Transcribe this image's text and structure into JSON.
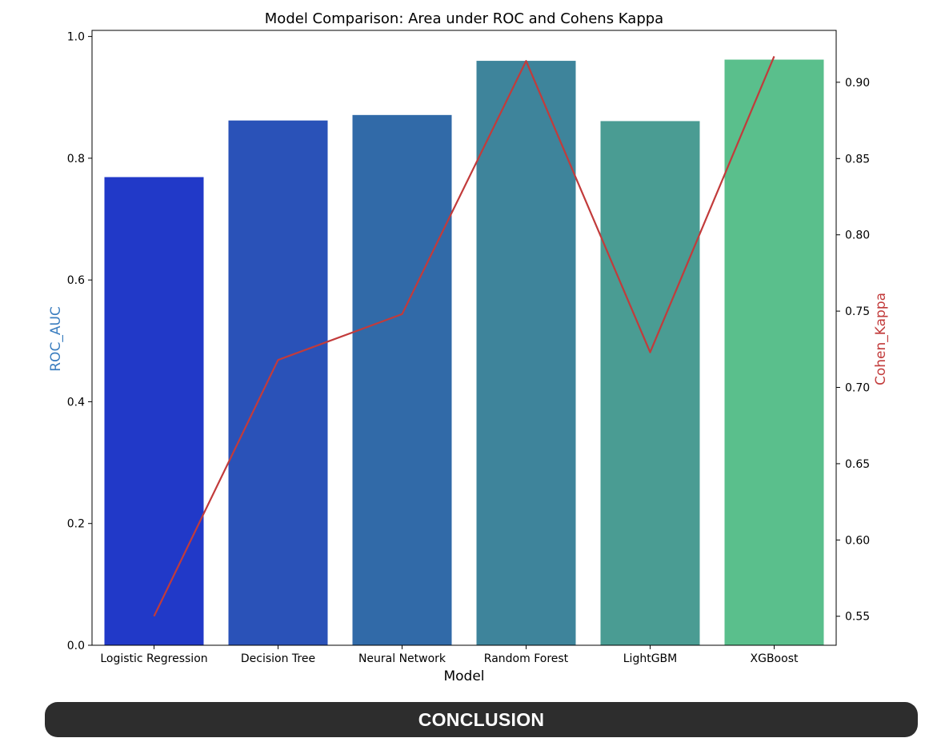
{
  "chart_data": {
    "type": "bar",
    "title": "Model Comparison: Area under ROC and Cohens Kappa",
    "xlabel": "Model",
    "ylabel": "ROC_AUC",
    "y2label": "Cohen_Kappa",
    "categories": [
      "Logistic Regression",
      "Decision Tree",
      "Neural Network",
      "Random Forest",
      "LightGBM",
      "XGBoost"
    ],
    "series": [
      {
        "name": "ROC_AUC",
        "type": "bar",
        "axis": "left",
        "values": [
          0.769,
          0.862,
          0.871,
          0.96,
          0.861,
          0.962
        ],
        "colors": [
          "#2139c8",
          "#2a52b8",
          "#316aa8",
          "#3e849b",
          "#4a9c93",
          "#5abf8c"
        ]
      },
      {
        "name": "Cohen_Kappa",
        "type": "line",
        "axis": "right",
        "color": "#c23b3b",
        "values": [
          0.55,
          0.718,
          0.748,
          0.914,
          0.723,
          0.917
        ]
      }
    ],
    "ylim": [
      0,
      1.01
    ],
    "y2lim": [
      0.531,
      0.934
    ],
    "yticks": [
      "0.0",
      "0.2",
      "0.4",
      "0.6",
      "0.8",
      "1.0"
    ],
    "y2ticks": [
      "0.55",
      "0.60",
      "0.65",
      "0.70",
      "0.75",
      "0.80",
      "0.85",
      "0.90"
    ],
    "ylabel_color": "#3a7dbf",
    "y2label_color": "#c23b3b",
    "grid": false,
    "legend": "none"
  },
  "banner": {
    "text": "CONCLUSION"
  }
}
